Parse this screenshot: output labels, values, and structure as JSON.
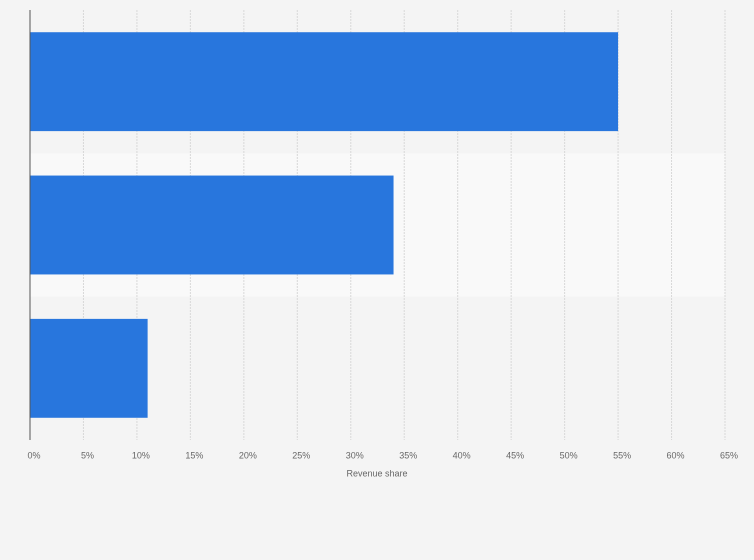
{
  "chart_data": {
    "type": "bar",
    "orientation": "horizontal",
    "categories": [
      null,
      null,
      null
    ],
    "values": [
      55,
      34,
      11
    ],
    "color": "#2876dd",
    "x_label": "Revenue share",
    "xlim": [
      0,
      65
    ],
    "xticks": [
      {
        "value": 0,
        "label": "0%"
      },
      {
        "value": 5,
        "label": "5%"
      },
      {
        "value": 10,
        "label": "10%"
      },
      {
        "value": 15,
        "label": "15%"
      },
      {
        "value": 20,
        "label": "20%"
      },
      {
        "value": 25,
        "label": "25%"
      },
      {
        "value": 30,
        "label": "30%"
      },
      {
        "value": 35,
        "label": "35%"
      },
      {
        "value": 40,
        "label": "40%"
      },
      {
        "value": 45,
        "label": "45%"
      },
      {
        "value": 50,
        "label": "50%"
      },
      {
        "value": 55,
        "label": "55%"
      },
      {
        "value": 60,
        "label": "60%"
      },
      {
        "value": 65,
        "label": "65%"
      }
    ],
    "grid": true
  }
}
